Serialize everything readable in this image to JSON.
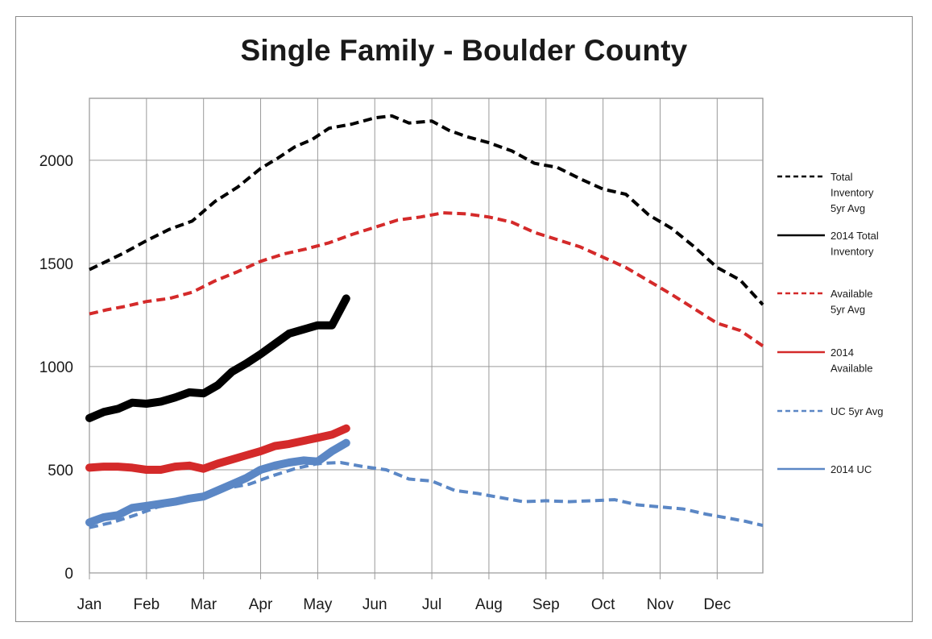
{
  "chart_data": {
    "type": "line",
    "title": "Single Family - Boulder County",
    "xlabel": "",
    "ylabel": "",
    "ylim": [
      0,
      2300
    ],
    "yticks": [
      0,
      500,
      1000,
      1500,
      2000
    ],
    "categories": [
      "Jan",
      "Feb",
      "Mar",
      "Apr",
      "May",
      "Jun",
      "Jul",
      "Aug",
      "Sep",
      "Oct",
      "Nov",
      "Dec"
    ],
    "x_range": [
      0,
      11.8
    ],
    "grid": true,
    "legend_position": "right",
    "series": [
      {
        "name": "Total Inventory 5yr Avg",
        "legend_lines": [
          "Total",
          "Inventory",
          "5yr Avg"
        ],
        "color": "#000000",
        "style": "dashed",
        "weight": "normal",
        "x": [
          0,
          0.3,
          0.6,
          1,
          1.4,
          1.8,
          2.2,
          2.6,
          3,
          3.3,
          3.6,
          3.9,
          4.2,
          4.6,
          5,
          5.3,
          5.6,
          6,
          6.3,
          6.6,
          7,
          7.4,
          7.8,
          8.2,
          8.6,
          9,
          9.4,
          9.8,
          10.2,
          10.6,
          11,
          11.4,
          11.8
        ],
        "y": [
          1470,
          1510,
          1550,
          1610,
          1665,
          1705,
          1800,
          1870,
          1960,
          2010,
          2065,
          2100,
          2155,
          2175,
          2205,
          2215,
          2180,
          2190,
          2145,
          2115,
          2085,
          2045,
          1985,
          1965,
          1910,
          1860,
          1835,
          1735,
          1670,
          1580,
          1480,
          1420,
          1300
        ]
      },
      {
        "name": "2014 Total Inventory",
        "legend_lines": [
          "2014 Total",
          "Inventory"
        ],
        "color": "#000000",
        "style": "solid",
        "weight": "thick",
        "x": [
          0,
          0.25,
          0.5,
          0.75,
          1,
          1.25,
          1.5,
          1.75,
          2,
          2.25,
          2.5,
          2.75,
          3,
          3.25,
          3.5,
          3.75,
          4,
          4.25,
          4.5
        ],
        "y": [
          750,
          780,
          795,
          825,
          820,
          830,
          850,
          875,
          870,
          910,
          975,
          1015,
          1060,
          1110,
          1160,
          1180,
          1200,
          1200,
          1330
        ]
      },
      {
        "name": "Available 5yr Avg",
        "legend_lines": [
          "Available",
          "5yr Avg"
        ],
        "color": "#d42a2a",
        "style": "dashed",
        "weight": "normal",
        "x": [
          0,
          0.3,
          0.6,
          1,
          1.4,
          1.8,
          2.2,
          2.6,
          3,
          3.4,
          3.8,
          4.2,
          4.6,
          5,
          5.4,
          5.8,
          6.2,
          6.6,
          7,
          7.4,
          7.8,
          8.2,
          8.6,
          9,
          9.4,
          9.8,
          10.2,
          10.6,
          11,
          11.4,
          11.8
        ],
        "y": [
          1255,
          1275,
          1290,
          1315,
          1330,
          1360,
          1415,
          1460,
          1510,
          1545,
          1570,
          1600,
          1640,
          1675,
          1710,
          1725,
          1745,
          1740,
          1725,
          1700,
          1650,
          1615,
          1580,
          1530,
          1480,
          1415,
          1350,
          1280,
          1210,
          1175,
          1100
        ]
      },
      {
        "name": "2014 Available",
        "legend_lines": [
          "2014",
          "Available"
        ],
        "color": "#d42a2a",
        "style": "solid",
        "weight": "thick",
        "x": [
          0,
          0.25,
          0.5,
          0.75,
          1,
          1.25,
          1.5,
          1.75,
          2,
          2.25,
          2.5,
          2.75,
          3,
          3.25,
          3.5,
          3.75,
          4,
          4.25,
          4.5
        ],
        "y": [
          510,
          515,
          515,
          510,
          500,
          500,
          515,
          520,
          505,
          530,
          550,
          570,
          590,
          615,
          625,
          640,
          655,
          670,
          700
        ]
      },
      {
        "name": "UC 5yr Avg",
        "legend_lines": [
          "UC 5yr Avg"
        ],
        "color": "#5b87c5",
        "style": "dashed",
        "weight": "normal",
        "x": [
          0,
          0.4,
          0.8,
          1.2,
          1.6,
          2,
          2.4,
          2.8,
          3.2,
          3.6,
          4,
          4.4,
          4.8,
          5.2,
          5.6,
          6,
          6.4,
          6.8,
          7.2,
          7.6,
          8,
          8.4,
          8.8,
          9.2,
          9.6,
          10,
          10.4,
          10.8,
          11.2,
          11.5,
          11.8
        ],
        "y": [
          220,
          245,
          280,
          320,
          340,
          370,
          410,
          430,
          470,
          505,
          530,
          535,
          515,
          500,
          455,
          445,
          400,
          385,
          365,
          345,
          350,
          345,
          350,
          355,
          330,
          320,
          310,
          285,
          265,
          250,
          230
        ]
      },
      {
        "name": "2014 UC",
        "legend_lines": [
          "2014 UC"
        ],
        "color": "#5b87c5",
        "style": "solid",
        "weight": "thick",
        "x": [
          0,
          0.25,
          0.5,
          0.75,
          1,
          1.25,
          1.5,
          1.75,
          2,
          2.25,
          2.5,
          2.75,
          3,
          3.25,
          3.5,
          3.75,
          4,
          4.25,
          4.5
        ],
        "y": [
          245,
          270,
          280,
          315,
          325,
          335,
          345,
          360,
          370,
          400,
          430,
          460,
          500,
          520,
          535,
          545,
          540,
          590,
          630
        ]
      }
    ]
  }
}
